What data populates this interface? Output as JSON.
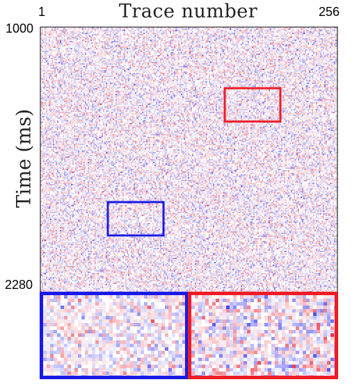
{
  "figure": {
    "x_axis_title": "Trace number",
    "y_axis_title": "Time (ms)",
    "x_tick_left": "1",
    "x_tick_right": "256",
    "y_tick_top": "1000",
    "y_tick_bottom": "2280"
  },
  "colors": {
    "positive": "#e8283a",
    "negative": "#2b2bf0",
    "highlight_red": "#ee1c24",
    "highlight_blue": "#1a1ae6",
    "frame": "#000000",
    "background": "#ffffff"
  },
  "highlights": [
    {
      "name": "red-box",
      "color": "red"
    },
    {
      "name": "blue-box",
      "color": "blue"
    }
  ],
  "zoom_panels": [
    {
      "name": "zoom-panel-blue",
      "color": "blue"
    },
    {
      "name": "zoom-panel-red",
      "color": "red"
    }
  ]
}
